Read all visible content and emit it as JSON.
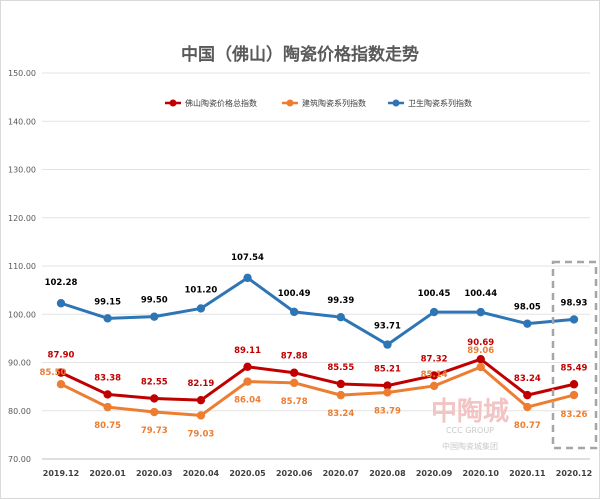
{
  "chart_data": {
    "type": "line",
    "title": "中国（佛山）陶瓷价格指数走势",
    "categories": [
      "2019.12",
      "2020.01",
      "2020.03",
      "2020.04",
      "2020.05",
      "2020.06",
      "2020.07",
      "2020.08",
      "2020.09",
      "2020.10",
      "2020.11",
      "2020.12"
    ],
    "yticks": [
      "150.00",
      "140.00",
      "130.00",
      "120.00",
      "110.00",
      "100.00",
      "90.00",
      "80.00",
      "70.00"
    ],
    "ylim": [
      70,
      150
    ],
    "grid": true,
    "legend_position": "top",
    "series": [
      {
        "name": "佛山陶瓷价格总指数",
        "color": "#c00000",
        "values": [
          87.9,
          83.38,
          82.55,
          82.19,
          89.11,
          87.88,
          85.55,
          85.21,
          87.32,
          90.69,
          83.24,
          85.49
        ],
        "labels": [
          "87.90",
          "83.38",
          "82.55",
          "82.19",
          "89.11",
          "87.88",
          "85.55",
          "85.21",
          "87.32",
          "90.69",
          "83.24",
          "85.49"
        ]
      },
      {
        "name": "建筑陶瓷系列指数",
        "color": "#ed7d31",
        "values": [
          85.5,
          80.75,
          79.73,
          79.03,
          86.04,
          85.78,
          83.24,
          83.79,
          85.14,
          89.06,
          80.77,
          83.26
        ],
        "labels": [
          "85.50",
          "80.75",
          "79.73",
          "79.03",
          "86.04",
          "85.78",
          "83.24",
          "83.79",
          "85.14",
          "89.06",
          "80.77",
          "83.26"
        ]
      },
      {
        "name": "卫生陶瓷系列指数",
        "color": "#2e75b6",
        "values": [
          102.28,
          99.15,
          99.5,
          101.2,
          107.54,
          100.49,
          99.39,
          93.71,
          100.45,
          100.44,
          98.05,
          98.93
        ],
        "labels": [
          "102.28",
          "99.15",
          "99.50",
          "101.20",
          "107.54",
          "100.49",
          "99.39",
          "93.71",
          "100.45",
          "100.44",
          "98.05",
          "98.93"
        ]
      }
    ]
  },
  "watermark": {
    "brand": "中陶城",
    "latin": "CCC GROUP",
    "sub": "中国陶瓷城集团"
  }
}
